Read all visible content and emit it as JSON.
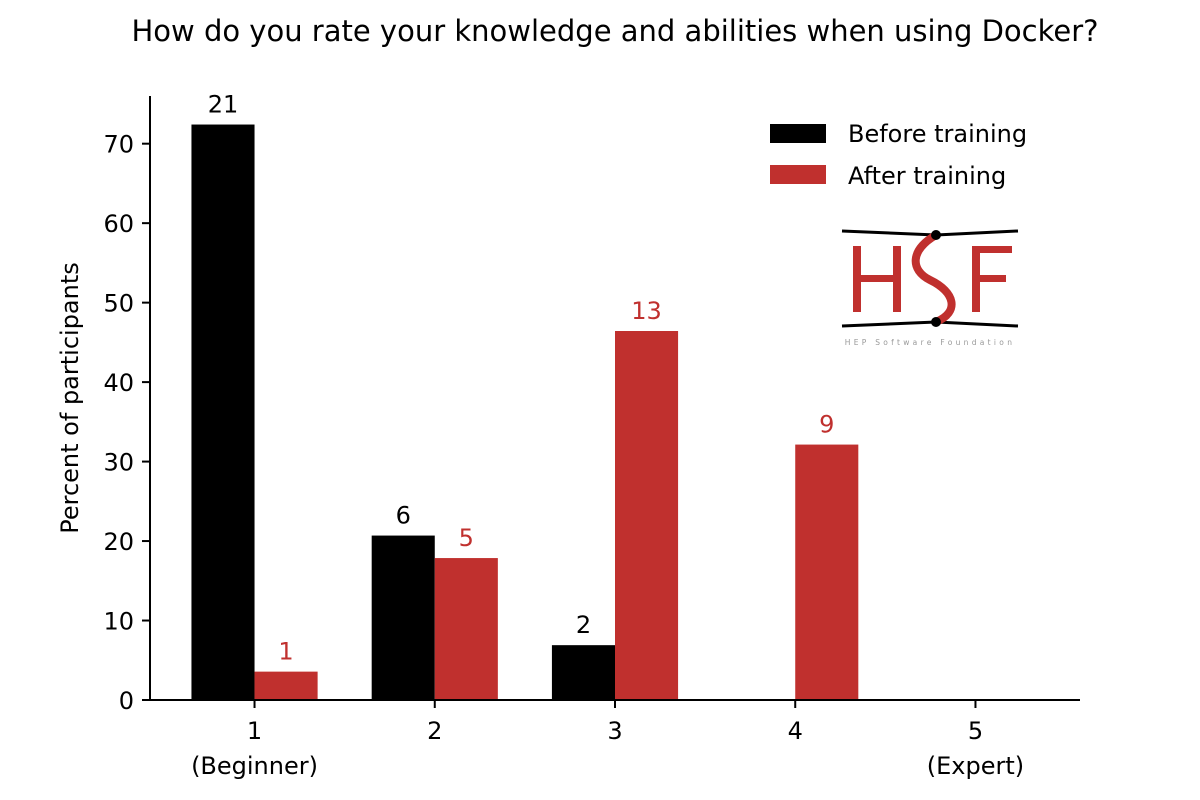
{
  "chart_data": {
    "type": "bar",
    "title": "How do you rate your knowledge and abilities when using Docker?",
    "xlabel": "",
    "ylabel": "Percent of participants",
    "categories": [
      1,
      2,
      3,
      4,
      5
    ],
    "tick_labels": [
      "1\n(Beginner)",
      "2",
      "3",
      "4",
      "5\n(Expert)"
    ],
    "xlim": [
      0.42,
      5.58
    ],
    "ylim": [
      0,
      76
    ],
    "yticks": [
      0,
      10,
      20,
      30,
      40,
      50,
      60,
      70
    ],
    "grid": false,
    "legend_position": "top-right",
    "series": [
      {
        "name": "Before training",
        "color": "#000000",
        "values": [
          72.41,
          20.69,
          6.9,
          0,
          0
        ],
        "counts": [
          21,
          6,
          2,
          null,
          null
        ]
      },
      {
        "name": "After training",
        "color": "#c0302e",
        "values": [
          3.57,
          17.86,
          46.43,
          32.14,
          0
        ],
        "counts": [
          1,
          5,
          13,
          9,
          null
        ]
      }
    ]
  },
  "logo": {
    "letters": "HSF",
    "subtitle": "HEP Software Foundation",
    "color": "#c0302e"
  }
}
